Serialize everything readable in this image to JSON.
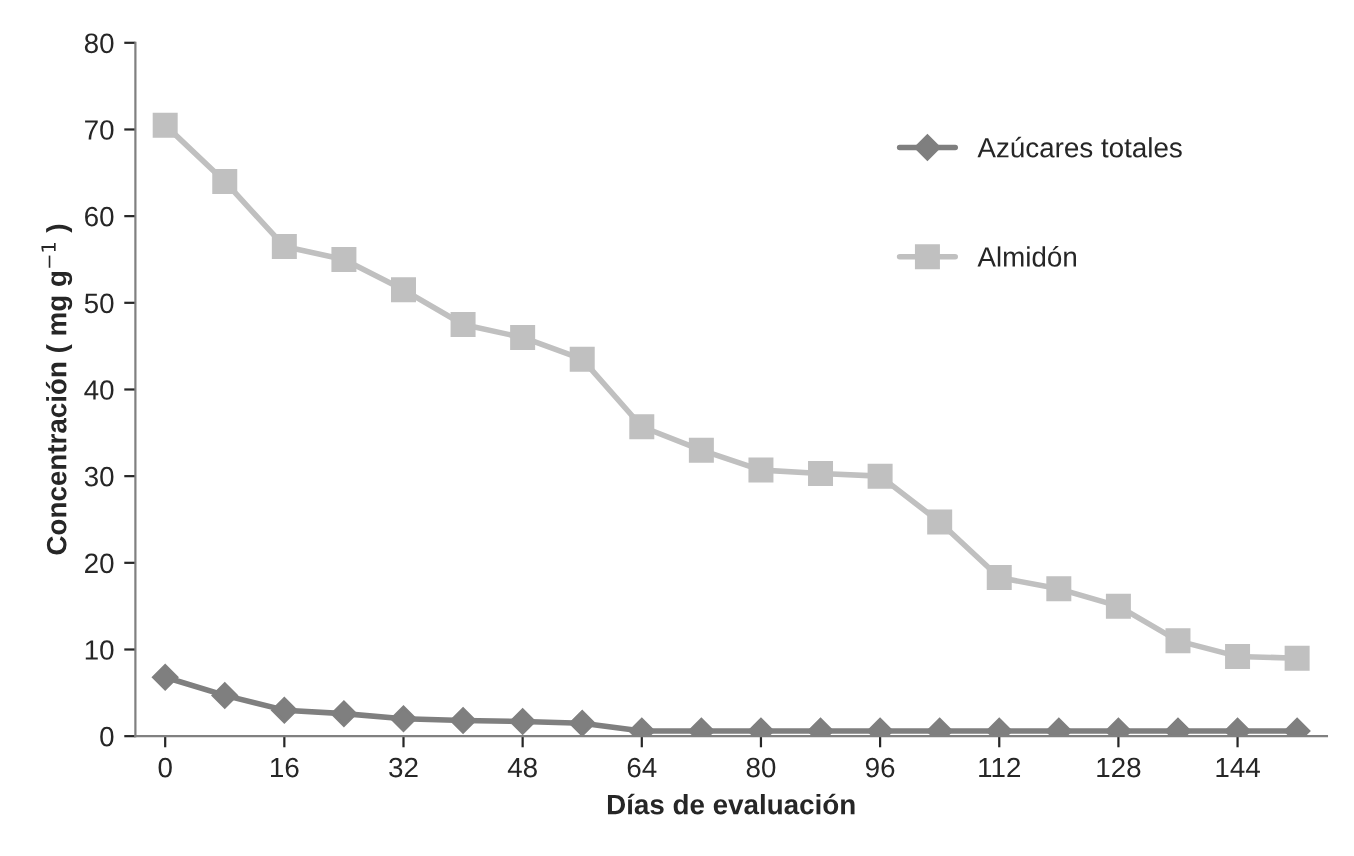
{
  "chart_data": {
    "type": "line",
    "xlabel": "Días de evaluación",
    "ylabel": "Concentración ( mg g$^{−1}$ )",
    "x": [
      0,
      8,
      16,
      24,
      32,
      40,
      48,
      56,
      64,
      72,
      80,
      88,
      96,
      104,
      112,
      120,
      128,
      136,
      144,
      152
    ],
    "series": [
      {
        "name": "Azúcares totales",
        "color": "#7f7f7f",
        "marker": "diamond",
        "values": [
          6.8,
          4.7,
          3.0,
          2.6,
          2.0,
          1.8,
          1.7,
          1.5,
          0.6,
          0.6,
          0.6,
          0.6,
          0.6,
          0.6,
          0.6,
          0.6,
          0.6,
          0.6,
          0.6,
          0.6
        ]
      },
      {
        "name": "Almidón",
        "color": "#c0c0c0",
        "marker": "square",
        "values": [
          70.5,
          64,
          56.5,
          55,
          51.5,
          47.5,
          46,
          43.5,
          35.7,
          33,
          30.7,
          30.3,
          30,
          24.7,
          18.3,
          17,
          15,
          11,
          9.2,
          9
        ]
      }
    ],
    "xlim": [
      -4,
      156
    ],
    "xticks": [
      0,
      16,
      32,
      48,
      64,
      80,
      96,
      112,
      128,
      144
    ],
    "ylim": [
      0,
      80
    ],
    "yticks": [
      0,
      10,
      20,
      30,
      40,
      50,
      60,
      70,
      80
    ],
    "grid": false,
    "legend": "top right",
    "line_style": "solid"
  }
}
